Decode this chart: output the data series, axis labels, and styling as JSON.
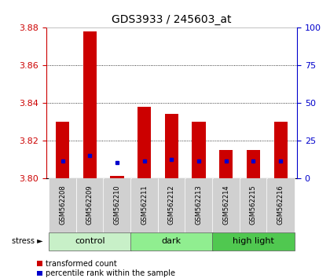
{
  "title": "GDS3933 / 245603_at",
  "samples": [
    "GSM562208",
    "GSM562209",
    "GSM562210",
    "GSM562211",
    "GSM562212",
    "GSM562213",
    "GSM562214",
    "GSM562215",
    "GSM562216"
  ],
  "red_values": [
    3.83,
    3.878,
    3.801,
    3.838,
    3.834,
    3.83,
    3.815,
    3.815,
    3.83
  ],
  "blue_values": [
    3.809,
    3.812,
    3.808,
    3.809,
    3.81,
    3.809,
    3.809,
    3.809,
    3.809
  ],
  "y_min": 3.8,
  "y_max": 3.88,
  "y_ticks": [
    3.8,
    3.82,
    3.84,
    3.86,
    3.88
  ],
  "right_ticks": [
    0,
    25,
    50,
    75,
    100
  ],
  "groups": [
    {
      "label": "control",
      "indices": [
        0,
        1,
        2
      ],
      "color": "#c8f0c8"
    },
    {
      "label": "dark",
      "indices": [
        3,
        4,
        5
      ],
      "color": "#90ee90"
    },
    {
      "label": "high light",
      "indices": [
        6,
        7,
        8
      ],
      "color": "#50c850"
    }
  ],
  "bar_color": "#cc0000",
  "dot_color": "#0000cc",
  "bar_width": 0.5,
  "legend_red": "transformed count",
  "legend_blue": "percentile rank within the sample",
  "left_axis_color": "#cc0000",
  "right_axis_color": "#0000cc",
  "bg_color": "#ffffff"
}
